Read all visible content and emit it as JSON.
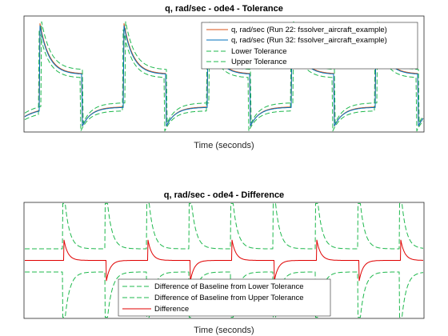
{
  "colors": {
    "run22": "#d95319",
    "run32": "#0072bd",
    "tolerance": "#1fb84d",
    "difference": "#e00000",
    "axes": "#262626"
  },
  "chart_data": [
    {
      "type": "line",
      "title": "q, rad/sec - ode4 - Tolerance",
      "xlabel": "Time (seconds)",
      "ylabel": "",
      "xticks": "hidden",
      "yticks": "hidden",
      "grid": false,
      "legend_position": "top-right",
      "signal": {
        "period": 1,
        "low_level": -0.55,
        "high_level": 0.1,
        "high_peak": 1.1,
        "low_peak": -0.95,
        "decay": 0.22,
        "tolerance_offset": 0.08,
        "ylim": [
          -1.05,
          1.25
        ]
      },
      "series": [
        {
          "name": "q, rad/sec (Run 22: fssolver_aircraft_example)",
          "style": "solid",
          "color_key": "run22"
        },
        {
          "name": "q, rad/sec (Run 32: fssolver_aircraft_example)",
          "style": "solid",
          "color_key": "run32"
        },
        {
          "name": "Lower Tolerance",
          "style": "dashed",
          "color_key": "tolerance"
        },
        {
          "name": "Upper Tolerance",
          "style": "dashed",
          "color_key": "tolerance"
        }
      ]
    },
    {
      "type": "line",
      "title": "q, rad/sec - ode4 - Difference",
      "xlabel": "Time (seconds)",
      "ylabel": "",
      "xticks": "hidden",
      "yticks": "hidden",
      "grid": false,
      "legend_position": "bottom-center",
      "signal": {
        "period": 1,
        "base_band": 0.2,
        "spike_height": 1.0,
        "difference_spike": 0.35,
        "ylim": [
          -1.0,
          1.0
        ]
      },
      "series": [
        {
          "name": "Difference of Baseline from Lower Tolerance",
          "style": "dashed",
          "color_key": "tolerance"
        },
        {
          "name": "Difference of Baseline from Upper Tolerance",
          "style": "dashed",
          "color_key": "tolerance"
        },
        {
          "name": "Difference",
          "style": "solid",
          "color_key": "difference"
        }
      ]
    }
  ]
}
